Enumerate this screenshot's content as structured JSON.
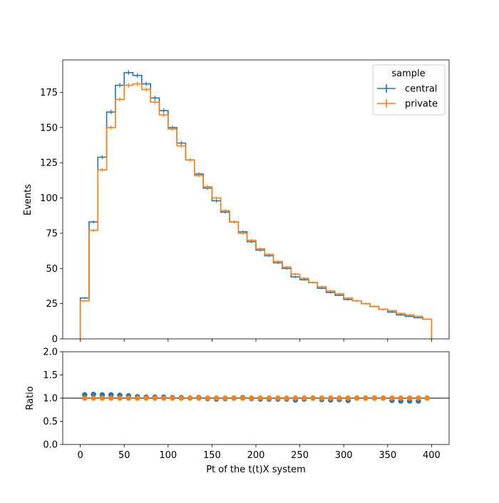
{
  "chart_data": {
    "type": "histogram",
    "xlabel": "Pt of the t(t)X system",
    "bin_edges": [
      0,
      10,
      20,
      30,
      40,
      50,
      60,
      70,
      80,
      90,
      100,
      110,
      120,
      130,
      140,
      150,
      160,
      170,
      180,
      190,
      200,
      210,
      220,
      230,
      240,
      250,
      260,
      270,
      280,
      290,
      300,
      310,
      320,
      330,
      340,
      350,
      360,
      370,
      380,
      390,
      400
    ],
    "x_ticks": [
      0,
      50,
      100,
      150,
      200,
      250,
      300,
      350,
      400
    ],
    "xlim": [
      -20,
      420
    ],
    "top_panel": {
      "ylabel": "Events",
      "ylim": [
        0,
        198
      ],
      "y_ticks": [
        0,
        25,
        50,
        75,
        100,
        125,
        150,
        175
      ],
      "series": [
        {
          "name": "central",
          "color": "#1f77b4",
          "values": [
            29,
            83,
            129,
            161,
            180,
            189,
            187,
            181,
            171,
            162,
            150,
            139,
            127,
            117,
            107,
            98,
            90,
            83,
            76,
            69,
            63,
            59,
            54,
            50,
            44,
            42,
            40,
            36,
            33,
            31,
            28,
            27,
            25,
            23,
            21,
            19,
            17,
            16,
            15,
            14
          ]
        },
        {
          "name": "private",
          "color": "#ff7f0e",
          "values": [
            27,
            77,
            120,
            150,
            170,
            180,
            181,
            177,
            168,
            159,
            149,
            137,
            127,
            116,
            108,
            100,
            91,
            83,
            75,
            70,
            64,
            60,
            55,
            51,
            46,
            43,
            40,
            37,
            34,
            32,
            29,
            27,
            25,
            23,
            21,
            20,
            18,
            17,
            16,
            14
          ]
        }
      ],
      "legend": {
        "title": "sample",
        "position": "upper right",
        "entries": [
          "central",
          "private"
        ]
      }
    },
    "bottom_panel": {
      "ylabel": "Ratio",
      "ylim": [
        0,
        2
      ],
      "y_ticks": [
        0.0,
        0.5,
        1.0,
        1.5,
        2.0
      ],
      "reference_line": 1.0,
      "series": [
        {
          "name": "central",
          "color": "#1f77b4",
          "values": [
            1.07,
            1.08,
            1.07,
            1.07,
            1.06,
            1.05,
            1.03,
            1.02,
            1.02,
            1.02,
            1.01,
            1.01,
            1.0,
            1.01,
            0.99,
            0.98,
            0.99,
            1.0,
            1.01,
            0.99,
            0.98,
            0.98,
            0.98,
            0.98,
            0.96,
            0.98,
            1.0,
            0.97,
            0.96,
            0.97,
            0.95,
            1.0,
            1.0,
            1.0,
            1.0,
            0.95,
            0.94,
            0.94,
            0.94,
            1.0
          ]
        },
        {
          "name": "private",
          "color": "#ff7f0e",
          "values": [
            1,
            1,
            1,
            1,
            1,
            1,
            1,
            1,
            1,
            1,
            1,
            1,
            1,
            1,
            1,
            1,
            1,
            1,
            1,
            1,
            1,
            1,
            1,
            1,
            1,
            1,
            1,
            1,
            1,
            1,
            1,
            1,
            1,
            1,
            1,
            1,
            1,
            1,
            1,
            1
          ]
        }
      ]
    }
  }
}
